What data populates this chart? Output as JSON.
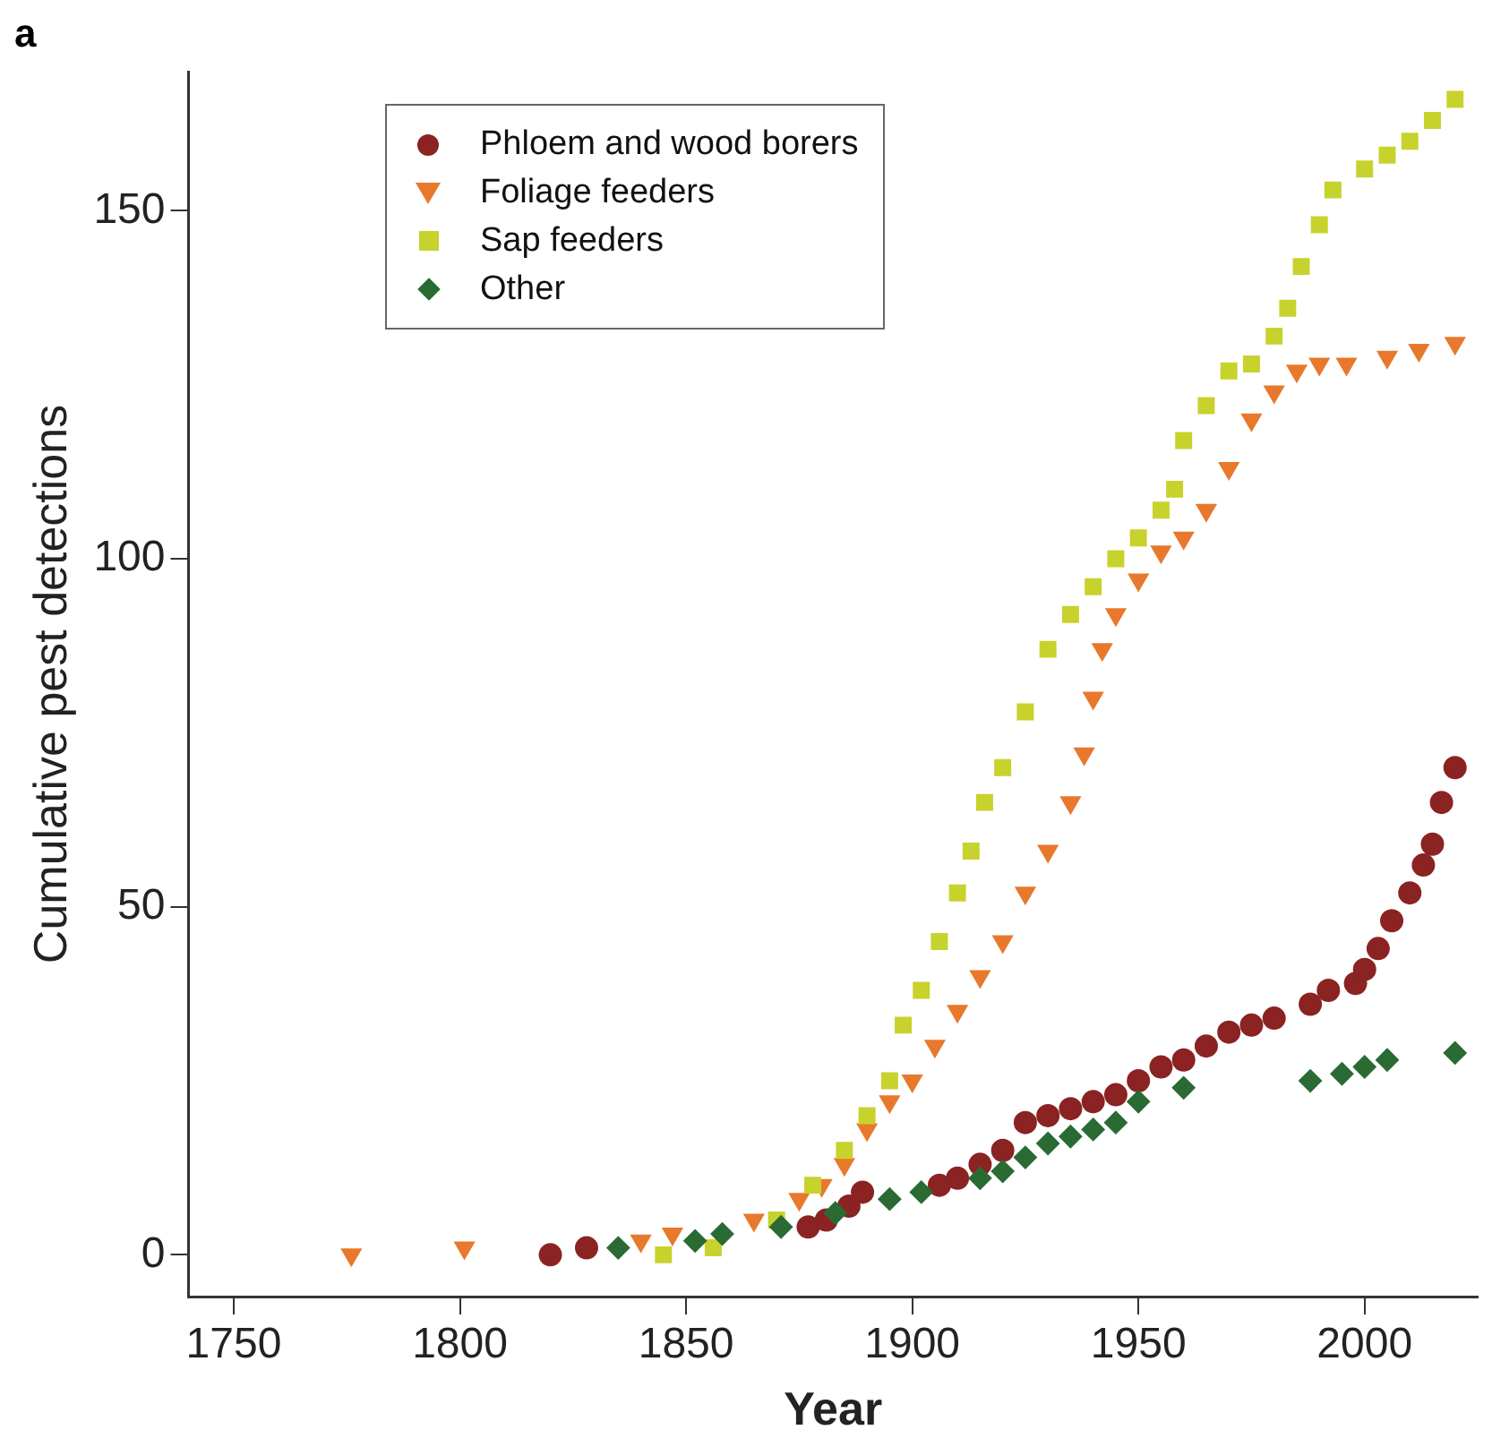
{
  "chart_data": {
    "type": "scatter",
    "xlabel": "Year",
    "ylabel": "Cumulative pest detections",
    "annotations": [
      "a"
    ],
    "xlim": [
      1740,
      2025
    ],
    "xticks": [
      1750,
      1800,
      1850,
      1900,
      1950,
      2000
    ],
    "ylim": [
      -6,
      170
    ],
    "yticks": [
      0,
      50,
      100,
      150
    ],
    "grid": false,
    "legend": "top left",
    "series": [
      {
        "name": "Phloem and wood borers",
        "color": "#8b2323",
        "marker": "circle",
        "x": [
          1820,
          1828,
          1877,
          1881,
          1886,
          1889,
          1906,
          1910,
          1915,
          1920,
          1925,
          1930,
          1935,
          1940,
          1945,
          1950,
          1955,
          1960,
          1965,
          1970,
          1975,
          1980,
          1988,
          1992,
          1998,
          2000,
          2003,
          2006,
          2010,
          2013,
          2015,
          2017,
          2020
        ],
        "values": [
          0,
          1,
          4,
          5,
          7,
          9,
          10,
          11,
          13,
          15,
          19,
          20,
          21,
          22,
          23,
          25,
          27,
          28,
          30,
          32,
          33,
          34,
          36,
          38,
          39,
          41,
          44,
          48,
          52,
          56,
          59,
          65,
          70
        ]
      },
      {
        "name": "Foliage feeders",
        "color": "#e8792c",
        "marker": "triangle",
        "x": [
          1776,
          1801,
          1840,
          1847,
          1865,
          1875,
          1880,
          1885,
          1890,
          1895,
          1900,
          1905,
          1910,
          1915,
          1920,
          1925,
          1930,
          1935,
          1938,
          1940,
          1942,
          1945,
          1950,
          1955,
          1960,
          1965,
          1970,
          1975,
          1980,
          1985,
          1990,
          1996,
          2005,
          2012,
          2020
        ],
        "values": [
          0,
          1,
          2,
          3,
          5,
          8,
          10,
          13,
          18,
          22,
          25,
          30,
          35,
          40,
          45,
          52,
          58,
          65,
          72,
          80,
          87,
          92,
          97,
          101,
          103,
          107,
          113,
          120,
          124,
          127,
          128,
          128,
          129,
          130,
          131
        ]
      },
      {
        "name": "Sap feeders",
        "color": "#c8d22d",
        "marker": "square",
        "x": [
          1845,
          1856,
          1870,
          1878,
          1885,
          1890,
          1895,
          1898,
          1902,
          1906,
          1910,
          1913,
          1916,
          1920,
          1925,
          1930,
          1935,
          1940,
          1945,
          1950,
          1955,
          1958,
          1960,
          1965,
          1970,
          1975,
          1980,
          1983,
          1986,
          1990,
          1993,
          2000,
          2005,
          2010,
          2015,
          2020
        ],
        "values": [
          0,
          1,
          5,
          10,
          15,
          20,
          25,
          33,
          38,
          45,
          52,
          58,
          65,
          70,
          78,
          87,
          92,
          96,
          100,
          103,
          107,
          110,
          117,
          122,
          127,
          128,
          132,
          136,
          142,
          148,
          153,
          156,
          158,
          160,
          163,
          166
        ]
      },
      {
        "name": "Other",
        "color": "#2a6b34",
        "marker": "diamond",
        "x": [
          1835,
          1852,
          1858,
          1871,
          1883,
          1895,
          1902,
          1915,
          1920,
          1925,
          1930,
          1935,
          1940,
          1945,
          1950,
          1960,
          1988,
          1995,
          2000,
          2005,
          2020
        ],
        "values": [
          1,
          2,
          3,
          4,
          6,
          8,
          9,
          11,
          12,
          14,
          16,
          17,
          18,
          19,
          22,
          24,
          25,
          26,
          27,
          28,
          29
        ]
      }
    ]
  }
}
